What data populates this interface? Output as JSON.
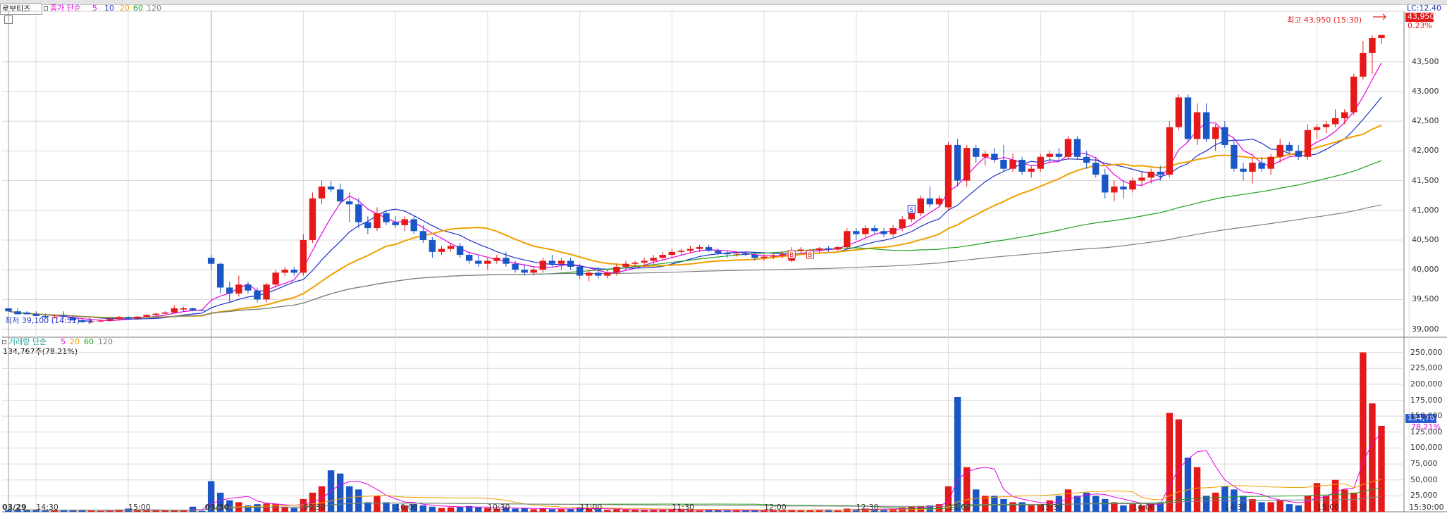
{
  "chart_title": "로보티즈",
  "price_legend": {
    "label": "종가 단순",
    "periods": [
      "5",
      "10",
      "20",
      "60",
      "120"
    ],
    "colors": [
      "#e600e6",
      "#2030c8",
      "#f0a000",
      "#20a020",
      "#808080"
    ]
  },
  "volume_legend": {
    "label": "거래량 단순",
    "periods": [
      "5",
      "20",
      "60",
      "120"
    ],
    "colors": [
      "#e600e6",
      "#f0a000",
      "#20a020",
      "#808080"
    ]
  },
  "volume_info": "134,767주(78.21%)",
  "high_annotation": "최고 43,950 (15:30)",
  "low_annotation": "최저 39,100 (14:51)",
  "current_price_tag": {
    "time": "LC:12.40",
    "price": "43,950",
    "change": "0.23%"
  },
  "current_volume_tag": {
    "value": "134,767",
    "pct": "78.21%"
  },
  "x_labels": [
    {
      "text": "03/29",
      "bold": true,
      "bar": 0
    },
    {
      "text": "14:30",
      "bold": false,
      "bar": 3
    },
    {
      "text": "15:00",
      "bold": false,
      "bar": 13
    },
    {
      "text": "03/30",
      "bold": true,
      "bar": 22
    },
    {
      "text": "09:30",
      "bold": false,
      "bar": 32
    },
    {
      "text": "10:00",
      "bold": false,
      "bar": 42
    },
    {
      "text": "10:30",
      "bold": false,
      "bar": 52
    },
    {
      "text": "11:00",
      "bold": false,
      "bar": 62
    },
    {
      "text": "11:30",
      "bold": false,
      "bar": 72
    },
    {
      "text": "12:00",
      "bold": false,
      "bar": 82
    },
    {
      "text": "12:30",
      "bold": false,
      "bar": 92
    },
    {
      "text": "13:00",
      "bold": false,
      "bar": 102
    },
    {
      "text": "13:30",
      "bold": false,
      "bar": 112
    },
    {
      "text": "14:00",
      "bold": false,
      "bar": 122
    },
    {
      "text": "14:30",
      "bold": false,
      "bar": 132
    },
    {
      "text": "15:00",
      "bold": false,
      "bar": 142
    },
    {
      "text": "15:30:00",
      "bold": false,
      "bar": 152
    }
  ],
  "price_ticks": [
    "43,500",
    "43,000",
    "42,500",
    "42,000",
    "41,500",
    "41,000",
    "40,500",
    "40,000",
    "39,500",
    "39,000"
  ],
  "volume_ticks": [
    "250,000",
    "225,000",
    "200,000",
    "175,000",
    "150,000",
    "125,000",
    "100,000",
    "75,000",
    "50,000",
    "25,000"
  ],
  "signal_markers": [
    {
      "label": "S",
      "bar": 98,
      "price": 41000,
      "color": "#2030c8"
    },
    {
      "label": "B",
      "bar": 85,
      "price": 40240,
      "color": "#e02020"
    },
    {
      "label": "B",
      "bar": 87,
      "price": 40240,
      "color": "#e02020"
    }
  ],
  "chart_data": {
    "type": "candlestick",
    "price_range": [
      38900,
      44350
    ],
    "volume_range": [
      0,
      265000
    ],
    "up_color": "#e51919",
    "down_color": "#1a56c6",
    "candles": [
      [
        39350,
        39350,
        39300,
        39300,
        3000
      ],
      [
        39300,
        39350,
        39250,
        39250,
        3000
      ],
      [
        39280,
        39300,
        39250,
        39250,
        2500
      ],
      [
        39250,
        39300,
        39220,
        39220,
        3000
      ],
      [
        39220,
        39260,
        39200,
        39200,
        2000
      ],
      [
        39200,
        39250,
        39180,
        39200,
        2500
      ],
      [
        39230,
        39300,
        39180,
        39210,
        2000
      ],
      [
        39200,
        39230,
        39140,
        39150,
        3000
      ],
      [
        39150,
        39170,
        39100,
        39120,
        2800
      ],
      [
        39120,
        39140,
        39100,
        39130,
        1500
      ],
      [
        39130,
        39160,
        39120,
        39140,
        1200
      ],
      [
        39140,
        39180,
        39130,
        39170,
        1500
      ],
      [
        39170,
        39220,
        39150,
        39200,
        3500
      ],
      [
        39200,
        39220,
        39150,
        39180,
        5000
      ],
      [
        39180,
        39220,
        39150,
        39210,
        3000
      ],
      [
        39210,
        39250,
        39200,
        39240,
        2000
      ],
      [
        39240,
        39280,
        39230,
        39260,
        2000
      ],
      [
        39260,
        39300,
        39250,
        39280,
        2000
      ],
      [
        39280,
        39400,
        39270,
        39350,
        3000
      ],
      [
        39330,
        39380,
        39300,
        39350,
        2000
      ],
      [
        39350,
        39360,
        39300,
        39320,
        8000
      ],
      [
        39320,
        39330,
        39300,
        39310,
        1500
      ],
      [
        40200,
        40250,
        40000,
        40100,
        48000
      ],
      [
        40100,
        40120,
        39600,
        39700,
        30000
      ],
      [
        39700,
        39800,
        39450,
        39600,
        18000
      ],
      [
        39600,
        39900,
        39550,
        39750,
        15000
      ],
      [
        39750,
        39800,
        39600,
        39650,
        10000
      ],
      [
        39650,
        39700,
        39450,
        39500,
        12000
      ],
      [
        39500,
        39780,
        39450,
        39750,
        13000
      ],
      [
        39750,
        40000,
        39700,
        39950,
        12000
      ],
      [
        39950,
        40050,
        39900,
        40000,
        8000
      ],
      [
        40000,
        40050,
        39900,
        39950,
        6000
      ],
      [
        39950,
        40600,
        39900,
        40500,
        20000
      ],
      [
        40500,
        41300,
        40450,
        41200,
        30000
      ],
      [
        41200,
        41500,
        41100,
        41400,
        40000
      ],
      [
        41400,
        41500,
        41300,
        41350,
        65000
      ],
      [
        41350,
        41450,
        41100,
        41150,
        60000
      ],
      [
        41150,
        41300,
        40800,
        41100,
        40000
      ],
      [
        41100,
        41200,
        40700,
        40800,
        35000
      ],
      [
        40800,
        40900,
        40600,
        40700,
        15000
      ],
      [
        40700,
        41050,
        40650,
        40950,
        25000
      ],
      [
        40950,
        41000,
        40750,
        40800,
        15000
      ],
      [
        40800,
        40900,
        40700,
        40750,
        12000
      ],
      [
        40750,
        40900,
        40650,
        40850,
        10000
      ],
      [
        40850,
        40900,
        40600,
        40650,
        12000
      ],
      [
        40650,
        40750,
        40450,
        40500,
        10000
      ],
      [
        40500,
        40550,
        40200,
        40300,
        8000
      ],
      [
        40300,
        40400,
        40250,
        40350,
        6000
      ],
      [
        40350,
        40450,
        40300,
        40400,
        7000
      ],
      [
        40400,
        40450,
        40200,
        40250,
        8000
      ],
      [
        40250,
        40300,
        40100,
        40150,
        9000
      ],
      [
        40150,
        40250,
        40050,
        40100,
        7000
      ],
      [
        40100,
        40200,
        40000,
        40150,
        6000
      ],
      [
        40150,
        40250,
        40100,
        40200,
        5000
      ],
      [
        40200,
        40300,
        40050,
        40100,
        6000
      ],
      [
        40100,
        40150,
        39950,
        40000,
        5000
      ],
      [
        40000,
        40100,
        39900,
        39950,
        6000
      ],
      [
        39950,
        40050,
        39900,
        40000,
        4000
      ],
      [
        40000,
        40200,
        39950,
        40150,
        5000
      ],
      [
        40150,
        40250,
        40050,
        40100,
        4000
      ],
      [
        40100,
        40200,
        40000,
        40150,
        4000
      ],
      [
        40150,
        40200,
        40000,
        40050,
        5000
      ],
      [
        40050,
        40100,
        39850,
        39900,
        7000
      ],
      [
        39900,
        40000,
        39800,
        39950,
        5000
      ],
      [
        39950,
        40050,
        39850,
        39900,
        4000
      ],
      [
        39900,
        40000,
        39850,
        39950,
        3000
      ],
      [
        39950,
        40100,
        39900,
        40050,
        4000
      ],
      [
        40050,
        40150,
        40000,
        40100,
        3000
      ],
      [
        40100,
        40150,
        40050,
        40120,
        3000
      ],
      [
        40120,
        40200,
        40050,
        40150,
        2500
      ],
      [
        40150,
        40250,
        40100,
        40200,
        3000
      ],
      [
        40200,
        40300,
        40150,
        40250,
        3500
      ],
      [
        40250,
        40350,
        40200,
        40300,
        4000
      ],
      [
        40300,
        40350,
        40250,
        40320,
        3000
      ],
      [
        40320,
        40400,
        40280,
        40350,
        2500
      ],
      [
        40350,
        40420,
        40300,
        40380,
        2000
      ],
      [
        40380,
        40420,
        40300,
        40320,
        3000
      ],
      [
        40320,
        40360,
        40250,
        40280,
        2500
      ],
      [
        40280,
        40320,
        40200,
        40260,
        2000
      ],
      [
        40260,
        40300,
        40220,
        40270,
        2000
      ],
      [
        40270,
        40310,
        40230,
        40250,
        1800
      ],
      [
        40250,
        40300,
        40150,
        40200,
        2500
      ],
      [
        40200,
        40260,
        40150,
        40220,
        2000
      ],
      [
        40220,
        40280,
        40180,
        40240,
        2200
      ],
      [
        40240,
        40300,
        40200,
        40260,
        2500
      ],
      [
        40150,
        40380,
        40130,
        40320,
        3500
      ],
      [
        40320,
        40380,
        40280,
        40340,
        3000
      ],
      [
        40280,
        40350,
        40240,
        40330,
        2800
      ],
      [
        40330,
        40380,
        40290,
        40360,
        3000
      ],
      [
        40360,
        40400,
        40300,
        40340,
        2500
      ],
      [
        40340,
        40400,
        40320,
        40380,
        2000
      ],
      [
        40380,
        40700,
        40350,
        40650,
        5000
      ],
      [
        40650,
        40700,
        40500,
        40600,
        4000
      ],
      [
        40600,
        40750,
        40550,
        40700,
        5000
      ],
      [
        40700,
        40750,
        40600,
        40650,
        4000
      ],
      [
        40650,
        40700,
        40550,
        40600,
        3500
      ],
      [
        40600,
        40750,
        40550,
        40700,
        5000
      ],
      [
        40700,
        40900,
        40650,
        40850,
        7000
      ],
      [
        40850,
        41000,
        40800,
        40950,
        8000
      ],
      [
        40950,
        41250,
        40900,
        41200,
        9000
      ],
      [
        41200,
        41400,
        41050,
        41100,
        10000
      ],
      [
        41100,
        41250,
        41050,
        41200,
        12000
      ],
      [
        41050,
        42150,
        41000,
        42100,
        40000
      ],
      [
        42100,
        42200,
        41400,
        41500,
        180000
      ],
      [
        41500,
        42100,
        41400,
        42050,
        70000
      ],
      [
        42050,
        42100,
        41800,
        41900,
        35000
      ],
      [
        41900,
        42000,
        41750,
        41950,
        25000
      ],
      [
        41950,
        42050,
        41800,
        41850,
        25000
      ],
      [
        41850,
        42100,
        41650,
        41700,
        20000
      ],
      [
        41700,
        41950,
        41650,
        41850,
        15000
      ],
      [
        41850,
        41900,
        41600,
        41650,
        15000
      ],
      [
        41650,
        41750,
        41550,
        41700,
        10000
      ],
      [
        41700,
        41950,
        41650,
        41900,
        12000
      ],
      [
        41900,
        42000,
        41800,
        41950,
        18000
      ],
      [
        41950,
        42050,
        41850,
        41900,
        25000
      ],
      [
        41900,
        42250,
        41850,
        42200,
        35000
      ],
      [
        42200,
        42250,
        41850,
        41900,
        25000
      ],
      [
        41900,
        42000,
        41700,
        41800,
        30000
      ],
      [
        41800,
        41900,
        41550,
        41600,
        25000
      ],
      [
        41600,
        41700,
        41200,
        41300,
        20000
      ],
      [
        41300,
        41500,
        41150,
        41400,
        15000
      ],
      [
        41400,
        41500,
        41200,
        41350,
        10000
      ],
      [
        41350,
        41550,
        41300,
        41500,
        12000
      ],
      [
        41500,
        41650,
        41400,
        41550,
        10000
      ],
      [
        41550,
        41700,
        41450,
        41650,
        12000
      ],
      [
        41650,
        41750,
        41500,
        41600,
        15000
      ],
      [
        41600,
        42500,
        41550,
        42400,
        155000
      ],
      [
        42400,
        42950,
        42350,
        42900,
        145000
      ],
      [
        42900,
        42950,
        42150,
        42200,
        85000
      ],
      [
        42200,
        42800,
        42100,
        42650,
        70000
      ],
      [
        42650,
        42800,
        42150,
        42200,
        25000
      ],
      [
        42200,
        42450,
        42000,
        42400,
        30000
      ],
      [
        42400,
        42500,
        42050,
        42100,
        40000
      ],
      [
        42100,
        42200,
        41650,
        41700,
        35000
      ],
      [
        41700,
        41800,
        41500,
        41650,
        25000
      ],
      [
        41650,
        41900,
        41450,
        41800,
        20000
      ],
      [
        41800,
        41900,
        41650,
        41700,
        15000
      ],
      [
        41700,
        41950,
        41600,
        41900,
        15000
      ],
      [
        41900,
        42200,
        41800,
        42100,
        18000
      ],
      [
        42100,
        42150,
        41950,
        42000,
        12000
      ],
      [
        42000,
        42100,
        41850,
        41900,
        10000
      ],
      [
        41900,
        42450,
        41850,
        42350,
        25000
      ],
      [
        42350,
        42450,
        42200,
        42400,
        45000
      ],
      [
        42400,
        42500,
        42300,
        42450,
        25000
      ],
      [
        42450,
        42700,
        42400,
        42550,
        50000
      ],
      [
        42550,
        42700,
        42450,
        42650,
        35000
      ],
      [
        42650,
        43300,
        42600,
        43250,
        30000
      ],
      [
        43250,
        43850,
        43200,
        43650,
        250000
      ],
      [
        43650,
        43950,
        43300,
        43900,
        170000
      ],
      [
        43900,
        43950,
        43800,
        43950,
        134767
      ]
    ]
  }
}
